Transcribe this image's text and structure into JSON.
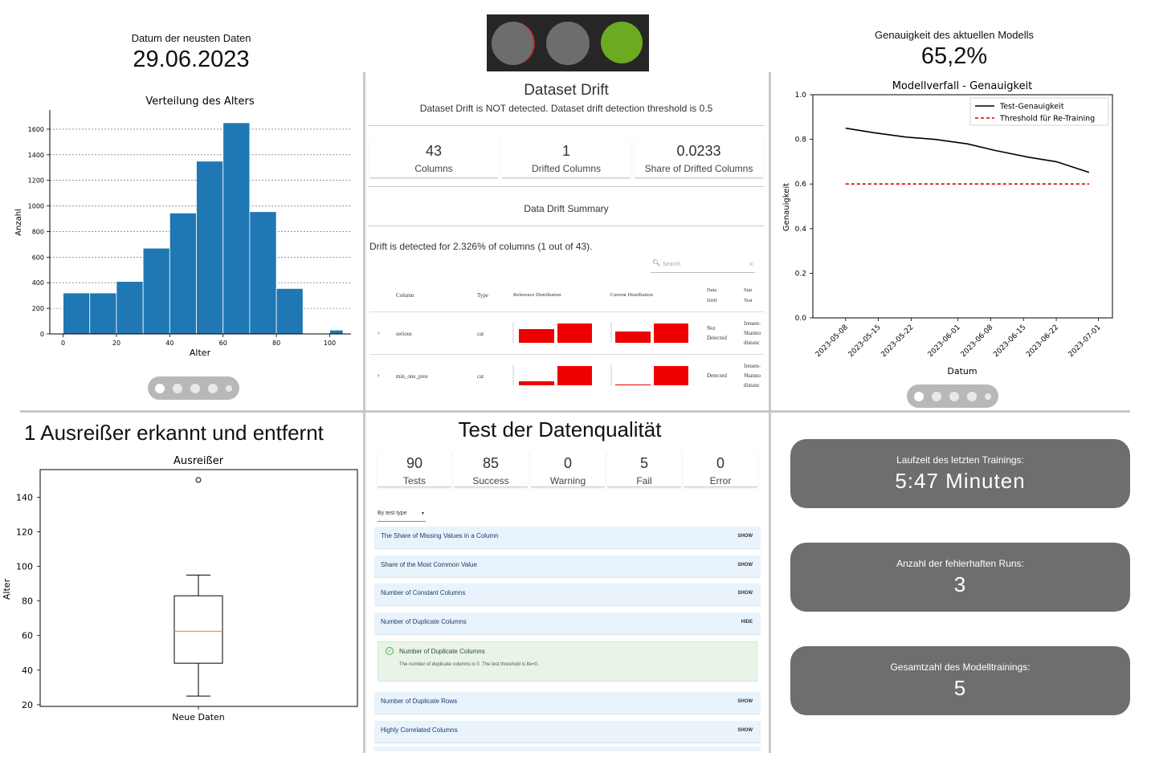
{
  "top_left": {
    "label": "Datum der neusten Daten",
    "value": "29.06.2023"
  },
  "top_right": {
    "label": "Genauigkeit des aktuellen Modells",
    "value": "65,2%"
  },
  "traffic_light": {
    "lights": [
      "grey",
      "grey",
      "green"
    ],
    "colors": {
      "off": "#6d6d6d",
      "on": "#6aab21",
      "frame": "#262626"
    }
  },
  "histogram": {
    "title": "Verteilung des Alters",
    "xlabel": "Alter",
    "ylabel": "Anzahl",
    "xticks": [
      "0",
      "20",
      "40",
      "60",
      "80",
      "100"
    ],
    "yticks": [
      "0",
      "200",
      "400",
      "600",
      "800",
      "1000",
      "1200",
      "1400",
      "1600"
    ]
  },
  "drift": {
    "title": "Dataset Drift",
    "subtitle": "Dataset Drift is NOT detected. Dataset drift detection threshold is 0.5",
    "metrics": [
      {
        "value": "43",
        "label": "Columns"
      },
      {
        "value": "1",
        "label": "Drifted Columns"
      },
      {
        "value": "0.0233",
        "label": "Share of Drifted Columns"
      }
    ],
    "summary_title": "Data Drift Summary",
    "detected_text": "Drift is detected for 2.326% of columns (1 out of 43).",
    "search_placeholder": "Search",
    "headers": {
      "column": "Column",
      "type": "Type",
      "ref": "Reference Distribution",
      "cur": "Current Distribution",
      "drift1": "Data",
      "drift2": "Drift",
      "stat1": "Stat",
      "stat2": "Test"
    },
    "rows": [
      {
        "column": "serious",
        "type": "cat",
        "drift1": "Not",
        "drift2": "Detected",
        "stat1": "Jensen-",
        "stat2": "Shanno",
        "stat3": "distanc"
      },
      {
        "column": "min_one_pres",
        "type": "cat",
        "drift1": "Detected",
        "drift2": "",
        "stat1": "Jensen-",
        "stat2": "Shanno",
        "stat3": "distanc"
      }
    ],
    "bar_color": "#ee0000"
  },
  "outlier": {
    "heading": "1 Ausreißer erkannt und entfernt",
    "title": "Ausreißer",
    "xlabel": "Neue Daten",
    "ylabel": "Alter",
    "yticks": [
      "20",
      "40",
      "60",
      "80",
      "100",
      "120",
      "140"
    ]
  },
  "quality": {
    "title": "Test der Datenqualität",
    "metrics": [
      {
        "value": "90",
        "label": "Tests"
      },
      {
        "value": "85",
        "label": "Success"
      },
      {
        "value": "0",
        "label": "Warning"
      },
      {
        "value": "5",
        "label": "Fail"
      },
      {
        "value": "0",
        "label": "Error"
      }
    ],
    "filter": "By test type",
    "tests": [
      {
        "name": "The Share of Missing Values in a Column",
        "action": "SHOW"
      },
      {
        "name": "Share of the Most Common Value",
        "action": "SHOW"
      },
      {
        "name": "Number of Constant Columns",
        "action": "SHOW"
      },
      {
        "name": "Number of Duplicate Columns",
        "action": "HIDE"
      },
      {
        "name": "Number of Duplicate Rows",
        "action": "SHOW"
      },
      {
        "name": "Highly Correlated Columns",
        "action": "SHOW"
      }
    ],
    "detail_title": "Number of Duplicate Columns",
    "detail_text": "The number of duplicate columns is 0. The test threshold is lte=0."
  },
  "stats": [
    {
      "label": "Laufzeit des letzten Trainings:",
      "value": "5:47 Minuten"
    },
    {
      "label": "Anzahl der fehlerhaften Runs:",
      "value": "3"
    },
    {
      "label": "Gesamtzahl des Modelltrainings:",
      "value": "5"
    }
  ],
  "chart_data": [
    {
      "type": "bar",
      "title": "Verteilung des Alters",
      "xlabel": "Alter",
      "ylabel": "Anzahl",
      "bin_edges": [
        0,
        10,
        20,
        30,
        40,
        50,
        60,
        70,
        80,
        90,
        100,
        105
      ],
      "values": [
        320,
        320,
        410,
        670,
        945,
        1350,
        1650,
        955,
        355,
        0,
        30
      ],
      "xlim": [
        -5,
        108
      ],
      "ylim": [
        0,
        1750
      ],
      "grid": "horizontal dotted",
      "color": "#1f77b4"
    },
    {
      "type": "line",
      "title": "Modellverfall - Genauigkeit",
      "xlabel": "Datum",
      "ylabel": "Genauigkeit",
      "x": [
        "2023-05-08",
        "2023-05-11",
        "2023-05-18",
        "2023-05-25",
        "2023-06-01",
        "2023-06-08",
        "2023-06-15",
        "2023-06-22",
        "2023-06-29"
      ],
      "series": [
        {
          "name": "Test-Genauigkeit",
          "values": [
            0.85,
            0.83,
            0.81,
            0.8,
            0.78,
            0.75,
            0.72,
            0.7,
            0.652
          ],
          "color": "#000000",
          "style": "solid"
        },
        {
          "name": "Threshold für Re-Training",
          "values": [
            0.6,
            0.6,
            0.6,
            0.6,
            0.6,
            0.6,
            0.6,
            0.6,
            0.6
          ],
          "color": "#dd0000",
          "style": "dashed"
        }
      ],
      "xticks": [
        "2023-05-08",
        "2023-05-15",
        "2023-05-22",
        "2023-06-01",
        "2023-06-08",
        "2023-06-15",
        "2023-06-22",
        "2023-07-01"
      ],
      "yticks": [
        "0.0",
        "0.2",
        "0.4",
        "0.6",
        "0.8",
        "1.0"
      ],
      "ylim": [
        0,
        1.0
      ],
      "legend": "top-right"
    },
    {
      "type": "box",
      "title": "Ausreißer",
      "category": "Neue Daten",
      "whisker_low": 25,
      "q1": 44,
      "median": 62.5,
      "q3": 83,
      "whisker_high": 95,
      "outliers": [
        150
      ],
      "ylim": [
        19,
        156
      ]
    }
  ]
}
